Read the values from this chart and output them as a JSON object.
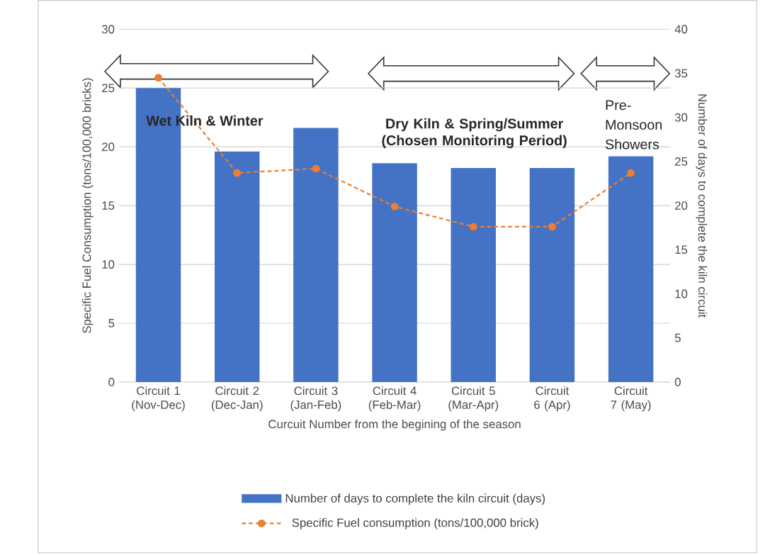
{
  "chart_data": {
    "type": "bar",
    "xlabel": "Curcuit Number from the begining of the season",
    "ylabel": "Specific Fuel Consumption (tons/100,000 bricks)",
    "y2label": "Number of days to complete the kiln circuit",
    "categories": [
      "Circuit 1 (Nov-Dec)",
      "Circuit 2 (Dec-Jan)",
      "Circuit 3 (Jan-Feb)",
      "Circuit 4 (Feb-Mar)",
      "Circuit 5 (Mar-Apr)",
      "Circuit 6 (Apr)",
      "Circuit 7 (May)"
    ],
    "series": [
      {
        "name": "Number of days to complete the kiln circuit (days)",
        "color": "#4472c4",
        "values": [
          25.0,
          19.6,
          21.6,
          18.6,
          18.2,
          18.2,
          19.2
        ]
      },
      {
        "name": "Specific Fuel consumption (tons/100,000 brick)",
        "type": "line",
        "axis": "y2",
        "color": "#ed7d31",
        "marker": "circle",
        "line_style": "dashed",
        "values": [
          34.5,
          23.7,
          24.2,
          19.9,
          17.6,
          17.6,
          23.7
        ]
      }
    ],
    "ylim": [
      0,
      30
    ],
    "yticks": [
      0,
      5,
      10,
      15,
      20,
      25,
      30
    ],
    "y2lim": [
      0,
      40
    ],
    "y2ticks": [
      0,
      5,
      10,
      15,
      20,
      25,
      30,
      35,
      40
    ],
    "grid": "y",
    "legend": "bottom",
    "annotations": [
      "Wet Kiln & Winter",
      "Dry Kiln & Spring/Summer (Chosen Monitoring Period)",
      "Pre-Monsoon Showers"
    ]
  }
}
